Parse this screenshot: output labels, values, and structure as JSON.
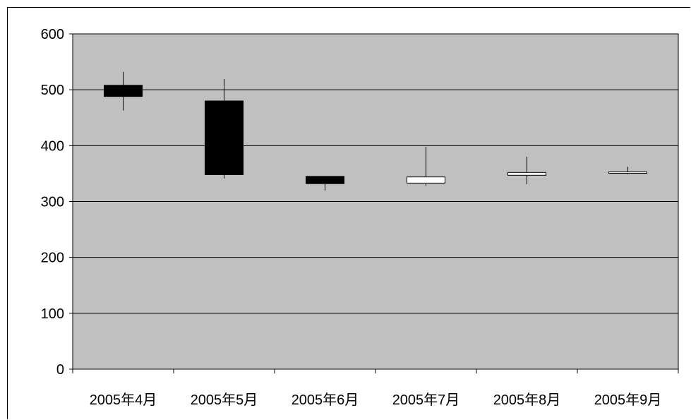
{
  "chart_data": {
    "type": "candlestick",
    "categories": [
      "2005年4月",
      "2005年5月",
      "2005年6月",
      "2005年7月",
      "2005年8月",
      "2005年9月"
    ],
    "series": [
      {
        "open": [
          508,
          480,
          345,
          333,
          347,
          351
        ],
        "close": [
          488,
          348,
          332,
          344,
          352,
          353
        ],
        "high": [
          532,
          519,
          345,
          398,
          380,
          362
        ],
        "low": [
          463,
          341,
          320,
          328,
          331,
          349
        ]
      }
    ],
    "ylim": [
      0,
      600
    ],
    "yticks": [
      "0",
      "100",
      "200",
      "300",
      "400",
      "500",
      "600"
    ],
    "grid": true,
    "legend": "none",
    "colors": {
      "plot_background": "#c0c0c0",
      "gridline": "#000000",
      "falling_body": "#000000",
      "rising_body": "#ffffff",
      "wick": "#000000"
    }
  }
}
